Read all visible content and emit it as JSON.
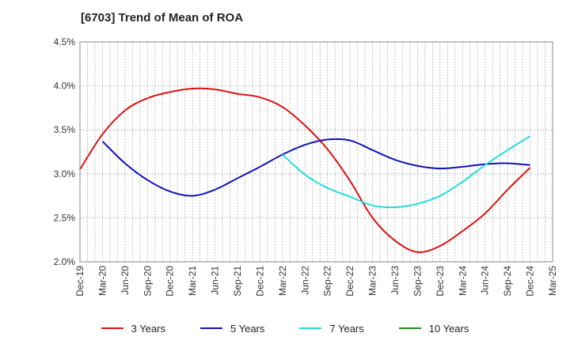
{
  "title": "[6703]  Trend of Mean of ROA",
  "chart_data": {
    "type": "line",
    "title": "[6703]  Trend of Mean of ROA",
    "xlabel": "",
    "ylabel": "",
    "x_ticks": [
      "Dec-19",
      "Mar-20",
      "Jun-20",
      "Sep-20",
      "Dec-20",
      "Mar-21",
      "Jun-21",
      "Sep-21",
      "Dec-21",
      "Mar-22",
      "Jun-22",
      "Sep-22",
      "Dec-22",
      "Mar-23",
      "Jun-23",
      "Sep-23",
      "Dec-23",
      "Mar-24",
      "Jun-24",
      "Sep-24",
      "Dec-24",
      "Mar-25"
    ],
    "y_ticks": [
      "2.0%",
      "2.5%",
      "3.0%",
      "3.5%",
      "4.0%",
      "4.5%"
    ],
    "ylim": [
      2.0,
      4.5
    ],
    "grid": true,
    "legend_position": "bottom",
    "series": [
      {
        "name": "3 Years",
        "color": "#dd1111",
        "start_index": 0,
        "values": [
          3.05,
          3.45,
          3.72,
          3.86,
          3.93,
          3.97,
          3.96,
          3.91,
          3.87,
          3.76,
          3.55,
          3.28,
          2.92,
          2.5,
          2.24,
          2.11,
          2.18,
          2.35,
          2.55,
          2.82,
          3.07
        ]
      },
      {
        "name": "5 Years",
        "color": "#1111bb",
        "start_index": 1,
        "values": [
          3.37,
          3.12,
          2.93,
          2.8,
          2.75,
          2.82,
          2.95,
          3.08,
          3.22,
          3.33,
          3.39,
          3.38,
          3.27,
          3.16,
          3.09,
          3.06,
          3.08,
          3.11,
          3.12,
          3.1
        ]
      },
      {
        "name": "7 Years",
        "color": "#22dddd",
        "start_index": 9,
        "values": [
          3.22,
          2.99,
          2.84,
          2.74,
          2.64,
          2.62,
          2.66,
          2.75,
          2.91,
          3.1,
          3.27,
          3.43
        ]
      },
      {
        "name": "10 Years",
        "color": "#228822",
        "start_index": 0,
        "values": []
      }
    ]
  }
}
